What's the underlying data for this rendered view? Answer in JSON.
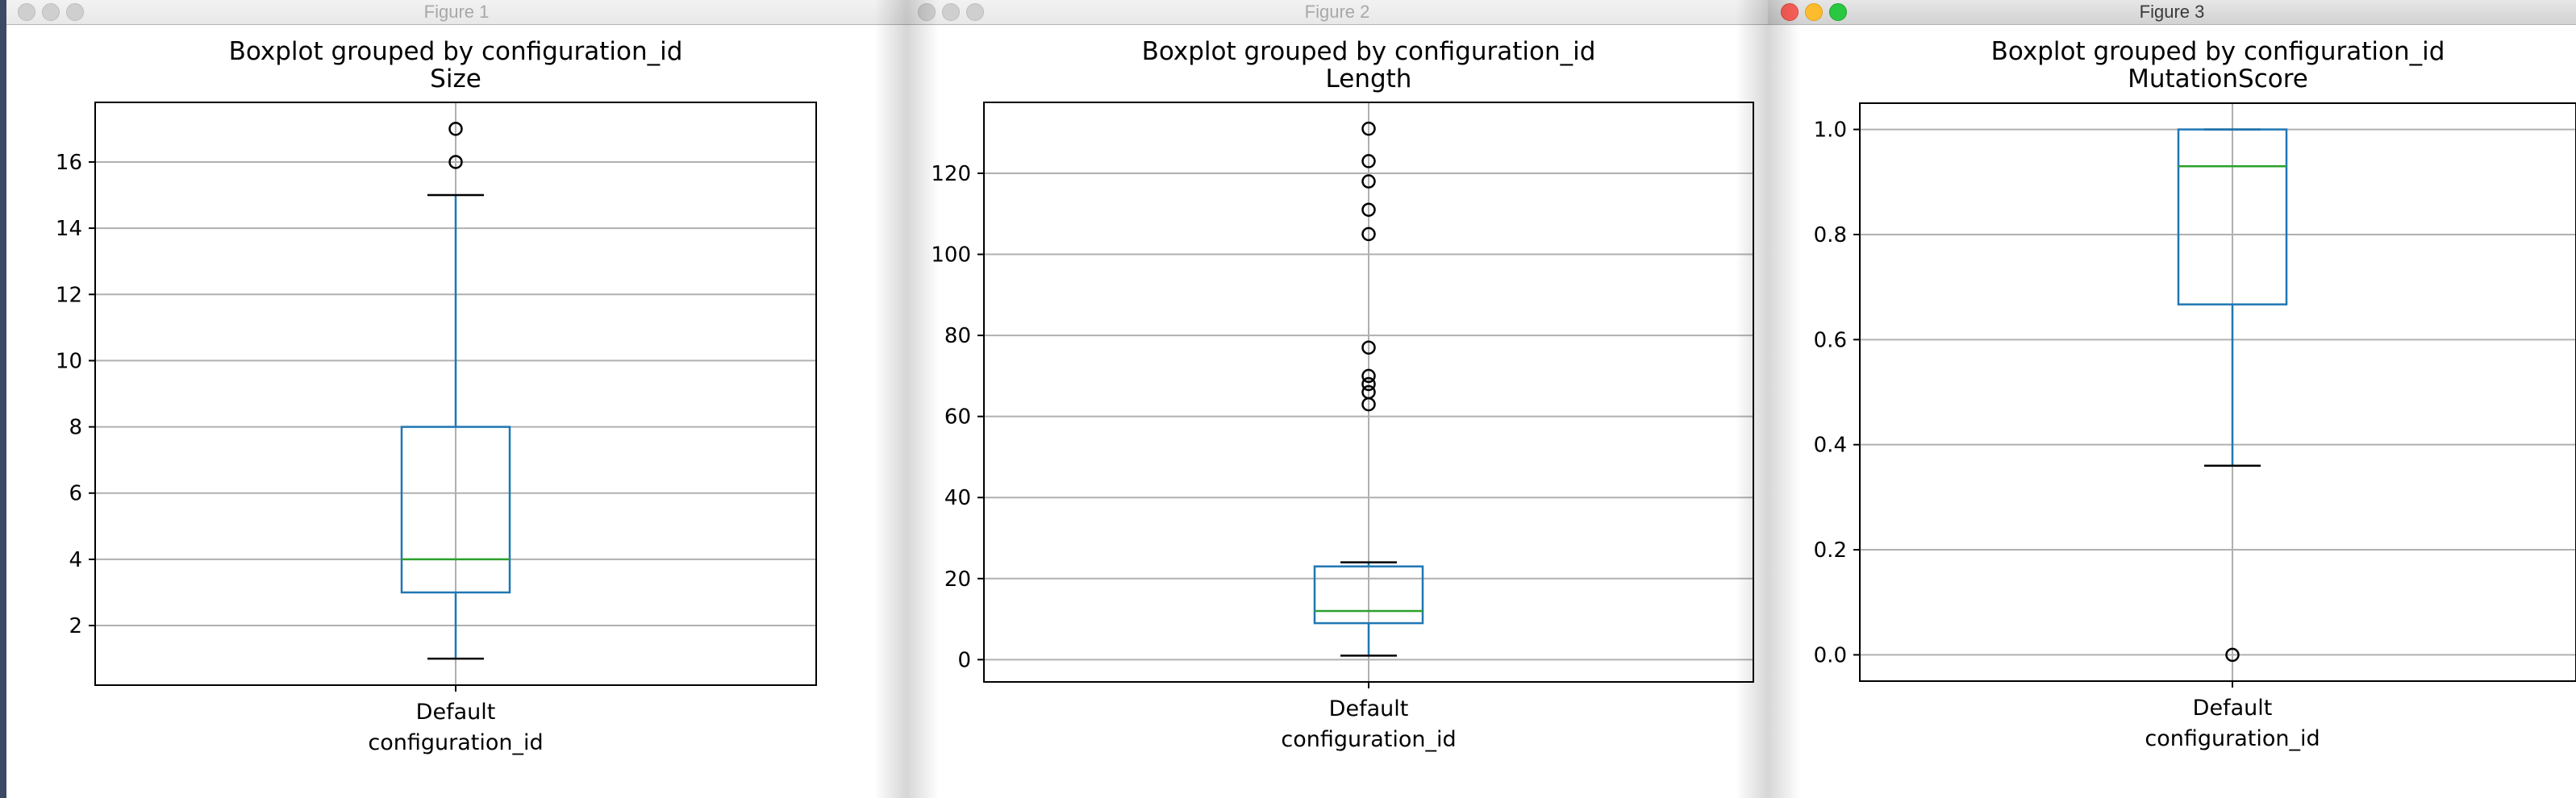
{
  "windows": [
    {
      "title": "Figure 1",
      "active": false
    },
    {
      "title": "Figure 2",
      "active": false
    },
    {
      "title": "Figure 3",
      "active": true
    }
  ],
  "chart_data": [
    {
      "type": "boxplot",
      "title": "Boxplot grouped by configuration_id",
      "subtitle": "Size",
      "xlabel": "configuration_id",
      "ylabel": "",
      "categories": [
        "Default"
      ],
      "ylim": [
        0.2,
        17.8
      ],
      "yticks": [
        2,
        4,
        6,
        8,
        10,
        12,
        14,
        16
      ],
      "ytick_labels": [
        "2",
        "4",
        "6",
        "8",
        "10",
        "12",
        "14",
        "16"
      ],
      "grid": true,
      "boxes": [
        {
          "whisker_low": 1,
          "q1": 3,
          "median": 4,
          "q3": 8,
          "whisker_high": 15,
          "outliers": [
            16,
            17
          ]
        }
      ]
    },
    {
      "type": "boxplot",
      "title": "Boxplot grouped by configuration_id",
      "subtitle": "Length",
      "xlabel": "configuration_id",
      "ylabel": "",
      "categories": [
        "Default"
      ],
      "ylim": [
        -5.5,
        137.5
      ],
      "yticks": [
        0,
        20,
        40,
        60,
        80,
        100,
        120
      ],
      "ytick_labels": [
        "0",
        "20",
        "40",
        "60",
        "80",
        "100",
        "120"
      ],
      "grid": true,
      "boxes": [
        {
          "whisker_low": 1,
          "q1": 9,
          "median": 12,
          "q3": 23,
          "whisker_high": 24,
          "outliers": [
            63,
            66,
            68,
            70,
            77,
            105,
            111,
            118,
            123,
            131
          ]
        }
      ]
    },
    {
      "type": "boxplot",
      "title": "Boxplot grouped by configuration_id",
      "subtitle": "MutationScore",
      "xlabel": "configuration_id",
      "ylabel": "",
      "categories": [
        "Default"
      ],
      "ylim": [
        -0.05,
        1.05
      ],
      "yticks": [
        0.0,
        0.2,
        0.4,
        0.6,
        0.8,
        1.0
      ],
      "ytick_labels": [
        "0.0",
        "0.2",
        "0.4",
        "0.6",
        "0.8",
        "1.0"
      ],
      "grid": true,
      "boxes": [
        {
          "whisker_low": 0.36,
          "q1": 0.667,
          "median": 0.93,
          "q3": 1.0,
          "whisker_high": 1.0,
          "outliers": [
            0.0
          ]
        }
      ]
    }
  ]
}
